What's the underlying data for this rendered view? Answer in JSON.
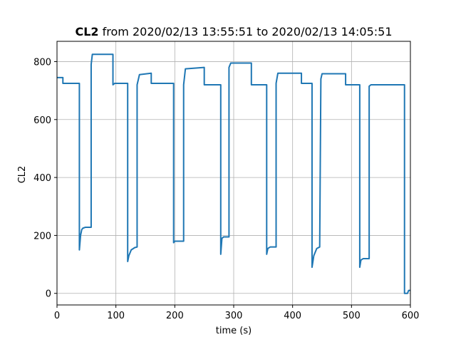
{
  "chart_data": {
    "type": "line",
    "title_bold": "CL2",
    "title_rest": " from 2020/02/13 13:55:51 to 2020/02/13 14:05:51",
    "xlabel": "time (s)",
    "ylabel": "CL2",
    "xlim": [
      0,
      600
    ],
    "ylim": [
      -40,
      870
    ],
    "xticks": [
      0,
      100,
      200,
      300,
      400,
      500,
      600
    ],
    "yticks": [
      0,
      200,
      400,
      600,
      800
    ],
    "grid": true,
    "colors": {
      "line": "#1f77b4",
      "grid": "#b0b0b0",
      "axes": "#000000"
    },
    "series": [
      {
        "x": [
          0,
          10,
          10,
          38,
          38,
          40,
          42,
          44,
          48,
          58,
          58,
          60,
          95,
          95,
          98,
          120,
          120,
          122,
          126,
          132,
          136,
          136,
          140,
          160,
          160,
          198,
          198,
          200,
          215,
          215,
          218,
          250,
          250,
          278,
          278,
          280,
          283,
          292,
          292,
          295,
          330,
          330,
          356,
          356,
          358,
          362,
          372,
          372,
          375,
          415,
          415,
          433,
          433,
          436,
          441,
          446,
          448,
          450,
          490,
          490,
          514,
          514,
          516,
          520,
          530,
          530,
          533,
          590,
          590,
          592,
          595,
          597,
          600
        ],
        "y": [
          745,
          745,
          725,
          725,
          150,
          200,
          220,
          225,
          228,
          228,
          790,
          825,
          825,
          720,
          725,
          725,
          110,
          130,
          150,
          158,
          160,
          720,
          755,
          760,
          725,
          725,
          175,
          180,
          180,
          720,
          775,
          780,
          720,
          720,
          135,
          190,
          195,
          195,
          780,
          795,
          795,
          720,
          720,
          135,
          155,
          160,
          160,
          725,
          760,
          760,
          725,
          725,
          90,
          130,
          155,
          160,
          740,
          758,
          758,
          720,
          720,
          90,
          115,
          120,
          120,
          715,
          720,
          720,
          0,
          0,
          0,
          10,
          10
        ]
      }
    ]
  }
}
